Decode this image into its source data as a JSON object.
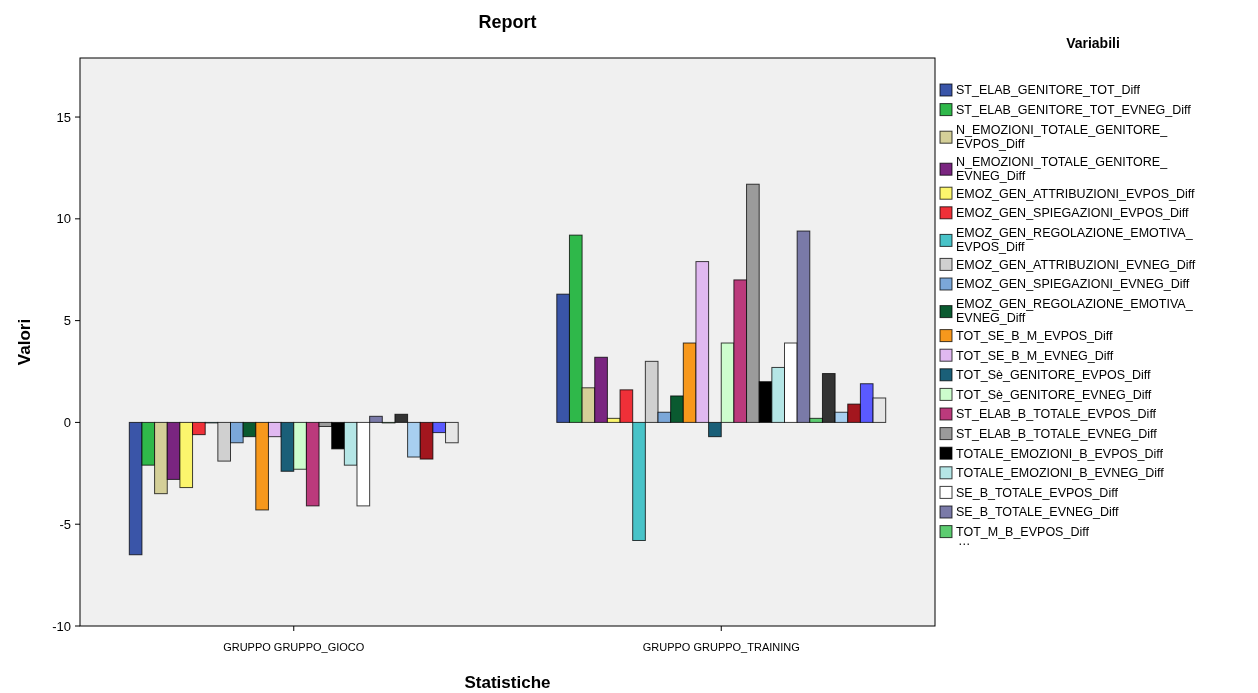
{
  "chart_data": {
    "type": "bar",
    "title": "Report",
    "xlabel": "Statistiche",
    "ylabel": "Valori",
    "legend_title": "Variabili",
    "legend": "right",
    "grid": false,
    "categories": [
      "GRUPPO GRUPPO_GIOCO",
      "GRUPPO GRUPPO_TRAINING"
    ],
    "ylim": [
      -10,
      17.9
    ],
    "yticks": [
      -10,
      -5,
      0,
      5,
      10,
      15
    ],
    "annotations": [
      "…"
    ],
    "series": [
      {
        "name": "ST_ELAB_GENITORE_TOT_Diff",
        "color": "#3a55a8",
        "values": [
          -6.5,
          6.3
        ]
      },
      {
        "name": "ST_ELAB_GENITORE_TOT_EVNEG_Diff",
        "color": "#2fb84a",
        "values": [
          -2.1,
          9.2
        ]
      },
      {
        "name": "N_EMOZIONI_TOTALE_GENITORE_EVPOS_Diff",
        "color": "#d4cf98",
        "values": [
          -3.5,
          1.7
        ]
      },
      {
        "name": "N_EMOZIONI_TOTALE_GENITORE_EVNEG_Diff",
        "color": "#7a2580",
        "values": [
          -2.8,
          3.2
        ]
      },
      {
        "name": "EMOZ_GEN_ATTRIBUZIONI_EVPOS_Diff",
        "color": "#fbf56d",
        "values": [
          -3.2,
          0.2
        ]
      },
      {
        "name": "EMOZ_GEN_SPIEGAZIONI_EVPOS_Diff",
        "color": "#ef3038",
        "values": [
          -0.6,
          1.6
        ]
      },
      {
        "name": "EMOZ_GEN_REGOLAZIONE_EMOTIVA_EVPOS_Diff",
        "color": "#48c3c8",
        "values": [
          0,
          -5.8
        ]
      },
      {
        "name": "EMOZ_GEN_ATTRIBUZIONI_EVNEG_Diff",
        "color": "#d0d0d0",
        "values": [
          -1.9,
          3.0
        ]
      },
      {
        "name": "EMOZ_GEN_SPIEGAZIONI_EVNEG_Diff",
        "color": "#7ba7d8",
        "values": [
          -1.0,
          0.5
        ]
      },
      {
        "name": "EMOZ_GEN_REGOLAZIONE_EMOTIVA_EVNEG_Diff",
        "color": "#0a5a30",
        "values": [
          -0.7,
          1.3
        ]
      },
      {
        "name": "TOT_SE_B_M_EVPOS_Diff",
        "color": "#f7981c",
        "values": [
          -4.3,
          3.9
        ]
      },
      {
        "name": "TOT_SE_B_M_EVNEG_Diff",
        "color": "#e0b8f0",
        "values": [
          -0.7,
          7.9
        ]
      },
      {
        "name": "TOT_Sè_GENITORE_EVPOS_Diff",
        "color": "#1a5f78",
        "values": [
          -2.4,
          -0.7
        ]
      },
      {
        "name": "TOT_Sè_GENITORE_EVNEG_Diff",
        "color": "#cdfdcd",
        "values": [
          -2.3,
          3.9
        ]
      },
      {
        "name": "ST_ELAB_B_TOTALE_EVPOS_Diff",
        "color": "#bb3a7c",
        "values": [
          -4.1,
          7.0
        ]
      },
      {
        "name": "ST_ELAB_B_TOTALE_EVNEG_Diff",
        "color": "#9b9b9b",
        "values": [
          -0.2,
          11.7
        ]
      },
      {
        "name": "TOTALE_EMOZIONI_B_EVPOS_Diff",
        "color": "#000000",
        "values": [
          -1.3,
          2.0
        ]
      },
      {
        "name": "TOTALE_EMOZIONI_B_EVNEG_Diff",
        "color": "#b5e6e6",
        "values": [
          -2.1,
          2.7
        ]
      },
      {
        "name": "SE_B_TOTALE_EVPOS_Diff",
        "color": "#ffffff",
        "values": [
          -4.1,
          3.9
        ]
      },
      {
        "name": "SE_B_TOTALE_EVNEG_Diff",
        "color": "#7a7aa8",
        "values": [
          0.3,
          9.4
        ]
      },
      {
        "name": "TOT_M_B_EVPOS_Diff",
        "color": "#5ccc70",
        "values": [
          0,
          0.2
        ]
      },
      {
        "color": "#333333",
        "values": [
          0.4,
          2.4
        ]
      },
      {
        "color": "#a8cff0",
        "values": [
          -1.7,
          0.5
        ]
      },
      {
        "color": "#a3161e",
        "values": [
          -1.8,
          0.9
        ]
      },
      {
        "color": "#5a5aff",
        "values": [
          -0.5,
          1.9
        ]
      },
      {
        "color": "#e6e6e6",
        "values": [
          -1.0,
          1.2
        ]
      }
    ]
  }
}
